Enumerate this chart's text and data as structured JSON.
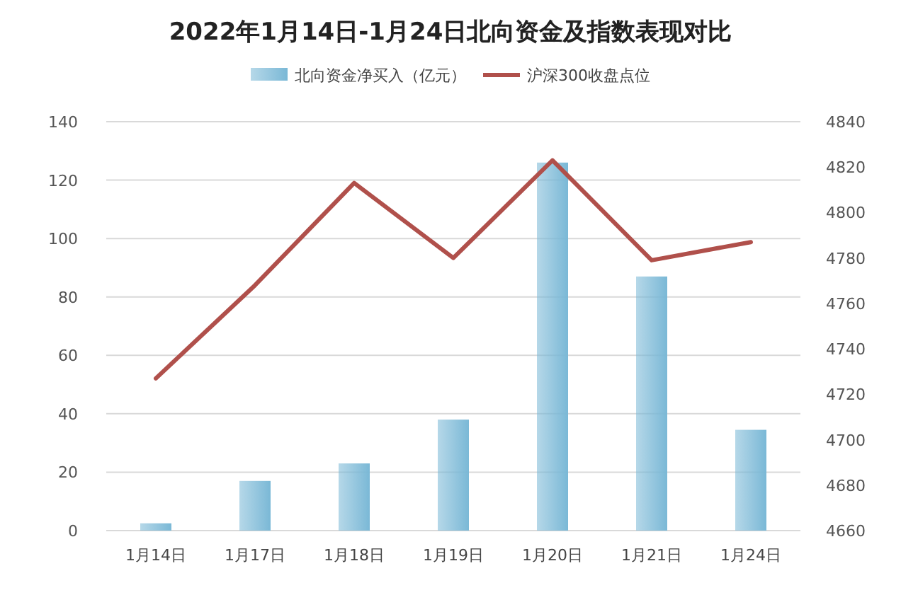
{
  "chart_data": {
    "type": "bar",
    "title": "2022年1月14日-1月24日北向资金及指数表现对比",
    "categories": [
      "1月14日",
      "1月17日",
      "1月18日",
      "1月19日",
      "1月20日",
      "1月21日",
      "1月24日"
    ],
    "series": [
      {
        "name": "北向资金净买入（亿元）",
        "color": "#7ab8d6",
        "values": [
          2.5,
          17,
          23,
          38,
          126,
          87,
          34.5
        ]
      },
      {
        "name": "沪深300收盘点位",
        "type": "line",
        "axis": "y2",
        "color": "#b0504b",
        "values": [
          4727,
          4768,
          4813,
          4780,
          4823,
          4779,
          4787
        ]
      }
    ],
    "ylim": [
      0,
      140
    ],
    "yticks": [
      0,
      20,
      40,
      60,
      80,
      100,
      120,
      140
    ],
    "y2lim": [
      4660,
      4840
    ],
    "y2ticks": [
      4660,
      4680,
      4700,
      4720,
      4740,
      4760,
      4780,
      4800,
      4820,
      4840
    ],
    "grid": "y",
    "legend": "top",
    "marker": "none",
    "line_style": "solid"
  }
}
